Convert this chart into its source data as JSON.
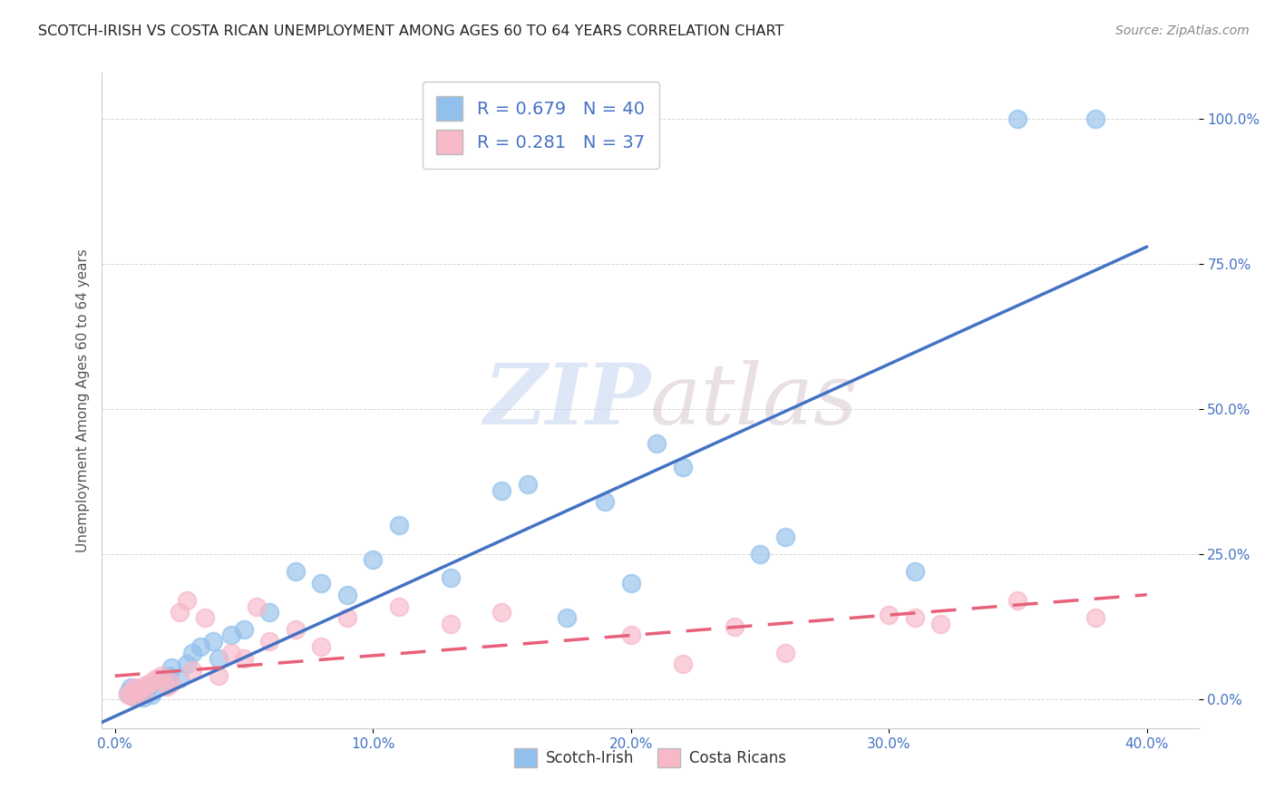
{
  "title": "SCOTCH-IRISH VS COSTA RICAN UNEMPLOYMENT AMONG AGES 60 TO 64 YEARS CORRELATION CHART",
  "source": "Source: ZipAtlas.com",
  "ylabel": "Unemployment Among Ages 60 to 64 years",
  "xlabel_ticks": [
    "0.0%",
    "10.0%",
    "20.0%",
    "30.0%",
    "40.0%"
  ],
  "xlabel_vals": [
    0.0,
    0.1,
    0.2,
    0.3,
    0.4
  ],
  "ylabel_ticks": [
    "0.0%",
    "25.0%",
    "50.0%",
    "75.0%",
    "100.0%"
  ],
  "ylabel_vals": [
    0.0,
    0.25,
    0.5,
    0.75,
    1.0
  ],
  "xlim": [
    -0.005,
    0.42
  ],
  "ylim": [
    -0.05,
    1.08
  ],
  "scotch_irish_R": 0.679,
  "scotch_irish_N": 40,
  "costa_rican_R": 0.281,
  "costa_rican_N": 37,
  "scotch_irish_color": "#92C0EC",
  "costa_rican_color": "#F7B8C8",
  "scotch_irish_line_color": "#4472C4",
  "costa_rican_line_color": "#E8607A",
  "watermark_zip": "ZIP",
  "watermark_atlas": "atlas",
  "legend_label_1": "Scotch-Irish",
  "legend_label_2": "Costa Ricans",
  "scotch_irish_x": [
    0.005,
    0.006,
    0.007,
    0.008,
    0.009,
    0.01,
    0.011,
    0.012,
    0.013,
    0.014,
    0.02,
    0.021,
    0.022,
    0.025,
    0.028,
    0.03,
    0.033,
    0.038,
    0.04,
    0.045,
    0.05,
    0.06,
    0.07,
    0.08,
    0.09,
    0.1,
    0.11,
    0.13,
    0.15,
    0.16,
    0.175,
    0.19,
    0.2,
    0.21,
    0.22,
    0.25,
    0.26,
    0.31,
    0.35,
    0.38
  ],
  "scotch_irish_y": [
    0.01,
    0.02,
    0.005,
    0.015,
    0.008,
    0.012,
    0.003,
    0.018,
    0.022,
    0.007,
    0.025,
    0.04,
    0.055,
    0.035,
    0.06,
    0.08,
    0.09,
    0.1,
    0.07,
    0.11,
    0.12,
    0.15,
    0.22,
    0.2,
    0.18,
    0.24,
    0.3,
    0.21,
    0.36,
    0.37,
    0.14,
    0.34,
    0.2,
    0.44,
    0.4,
    0.25,
    0.28,
    0.22,
    1.0,
    1.0
  ],
  "costa_rican_x": [
    0.005,
    0.006,
    0.007,
    0.008,
    0.009,
    0.01,
    0.011,
    0.012,
    0.014,
    0.016,
    0.018,
    0.02,
    0.022,
    0.025,
    0.028,
    0.03,
    0.035,
    0.04,
    0.045,
    0.05,
    0.055,
    0.06,
    0.07,
    0.08,
    0.09,
    0.11,
    0.13,
    0.15,
    0.2,
    0.22,
    0.24,
    0.26,
    0.3,
    0.31,
    0.32,
    0.35,
    0.38
  ],
  "costa_rican_y": [
    0.008,
    0.012,
    0.005,
    0.02,
    0.015,
    0.018,
    0.01,
    0.025,
    0.03,
    0.035,
    0.04,
    0.022,
    0.028,
    0.15,
    0.17,
    0.05,
    0.14,
    0.04,
    0.08,
    0.07,
    0.16,
    0.1,
    0.12,
    0.09,
    0.14,
    0.16,
    0.13,
    0.15,
    0.11,
    0.06,
    0.125,
    0.08,
    0.145,
    0.14,
    0.13,
    0.17,
    0.14
  ],
  "si_line_x": [
    -0.01,
    0.4
  ],
  "si_line_y": [
    -0.05,
    0.78
  ],
  "cr_line_x": [
    0.0,
    0.4
  ],
  "cr_line_y": [
    0.04,
    0.18
  ]
}
